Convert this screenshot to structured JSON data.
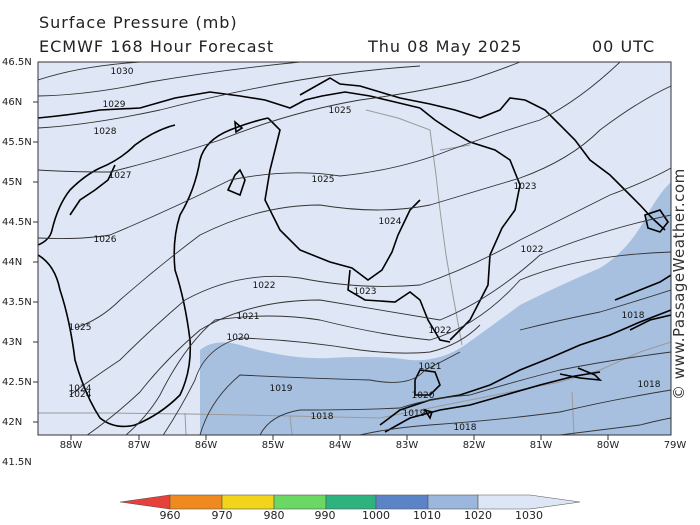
{
  "header": {
    "title": "Surface Pressure (mb)",
    "model": "ECMWF 168 Hour Forecast",
    "valid_date": "Thu 08 May 2025",
    "valid_time": "00 UTC"
  },
  "axes": {
    "lat_labels": [
      "46.5N",
      "46N",
      "45.5N",
      "45N",
      "44.5N",
      "44N",
      "43.5N",
      "43N",
      "42.5N",
      "42N",
      "41.5N"
    ],
    "lon_labels": [
      "88W",
      "87W",
      "86W",
      "85W",
      "84W",
      "83W",
      "82W",
      "81W",
      "80W",
      "79W"
    ]
  },
  "isobar_labels": {
    "l1030": "1030",
    "l1029": "1029",
    "l1028": "1028",
    "l1027": "1027",
    "l1026": "1026",
    "l1025a": "1025",
    "l1025b": "1025",
    "l1025c": "1025",
    "l1024a": "1024",
    "l1024b": "1024",
    "l1024c": "1024",
    "l1023a": "1023",
    "l1023b": "1023",
    "l1022a": "1022",
    "l1022b": "1022",
    "l1022c": "1022",
    "l1021a": "1021",
    "l1021b": "1021",
    "l1020a": "1020",
    "l1020b": "1020",
    "l1019a": "1019",
    "l1019b": "1019",
    "l1018a": "1018",
    "l1018b": "1018",
    "l1018c": "1018",
    "l1018d": "1018",
    "l1027b": "1027"
  },
  "colorbar": {
    "values": [
      "960",
      "970",
      "980",
      "990",
      "1000",
      "1010",
      "1020",
      "1030"
    ],
    "colors": [
      "#e8403a",
      "#f08a1e",
      "#f2d51a",
      "#6bd864",
      "#2fb37e",
      "#5b84c8",
      "#9bb7de",
      "#dde6f4"
    ]
  },
  "fill_colors": {
    "pressure_1020_1030": "#dfe6f5",
    "pressure_1010_1020": "#a7c0e0",
    "land_line": "#000000",
    "isobar_line": "#333333"
  },
  "credit": "© www.PassageWeather.com"
}
